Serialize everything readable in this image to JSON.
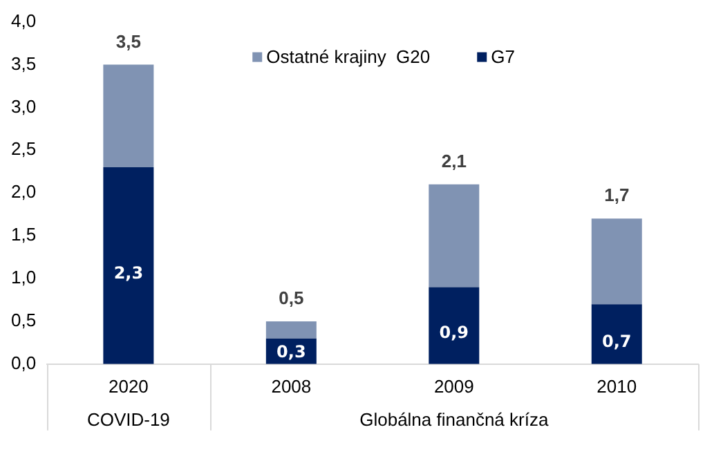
{
  "chart_data": {
    "type": "bar",
    "stacked": true,
    "categories": [
      "2020",
      "2008",
      "2009",
      "2010"
    ],
    "series": [
      {
        "name": "G7",
        "color": "#002060",
        "values": [
          2.3,
          0.3,
          0.9,
          0.7
        ],
        "value_labels": [
          "2,3",
          "0,3",
          "0,9",
          "0,7"
        ]
      },
      {
        "name": "Ostatné krajiny  G20",
        "color": "#8093b3",
        "values": [
          1.2,
          0.2,
          1.2,
          1.0
        ]
      }
    ],
    "totals": [
      "3,5",
      "0,5",
      "2,1",
      "1,7"
    ],
    "ylim": [
      0,
      4
    ],
    "yticks": [
      {
        "value": 0,
        "label": "0,0"
      },
      {
        "value": 0.5,
        "label": "0,5"
      },
      {
        "value": 1,
        "label": "1,0"
      },
      {
        "value": 1.5,
        "label": "1,5"
      },
      {
        "value": 2,
        "label": "2,0"
      },
      {
        "value": 2.5,
        "label": "2,5"
      },
      {
        "value": 3,
        "label": "3,0"
      },
      {
        "value": 3.5,
        "label": "3,5"
      },
      {
        "value": 4,
        "label": "4,0"
      }
    ],
    "annotations": [
      "COVID-19",
      "Globálna finančná kríza"
    ],
    "legend": "top",
    "grid": false
  }
}
